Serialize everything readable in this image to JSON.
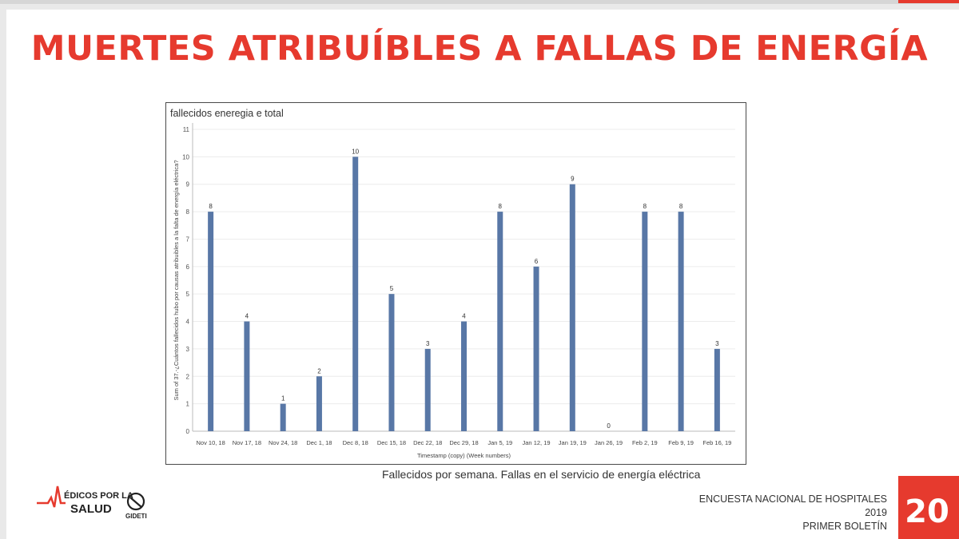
{
  "slide": {
    "title": "MUERTES ATRIBUÍBLES A FALLAS DE ENERGÍA",
    "caption": "Fallecidos por semana. Fallas en el servicio de energía eléctrica",
    "footer": [
      "ENCUESTA NACIONAL DE HOSPITALES",
      "2019",
      "PRIMER BOLETÍN"
    ],
    "page_number": "20",
    "logos": {
      "mps_line1": "ÉDICOS POR LA",
      "mps_line2": "SALUD",
      "gideti": "GIDETI"
    },
    "colors": {
      "accent": "#e63a2e",
      "bar": "#5877a6"
    }
  },
  "chart_data": {
    "type": "bar",
    "title": "fallecidos eneregia e total",
    "xlabel": "Timestamp (copy) (Week numbers)",
    "ylabel": "Sum of 37.-¿Cuántos fallecidos hubo por causas atribuibles a la falta de energía eléctrica?",
    "categories": [
      "Nov 10, 18",
      "Nov 17, 18",
      "Nov 24, 18",
      "Dec 1, 18",
      "Dec 8, 18",
      "Dec 15, 18",
      "Dec 22, 18",
      "Dec 29, 18",
      "Jan 5, 19",
      "Jan 12, 19",
      "Jan 19, 19",
      "Jan 26, 19",
      "Feb 2, 19",
      "Feb 9, 19",
      "Feb 16, 19"
    ],
    "values": [
      8,
      4,
      1,
      2,
      10,
      5,
      3,
      4,
      8,
      6,
      9,
      0,
      8,
      8,
      3
    ],
    "ylim": [
      0,
      11
    ],
    "yticks": [
      0,
      1,
      2,
      3,
      4,
      5,
      6,
      7,
      8,
      9,
      10,
      11
    ],
    "grid": true,
    "data_labels": true
  }
}
